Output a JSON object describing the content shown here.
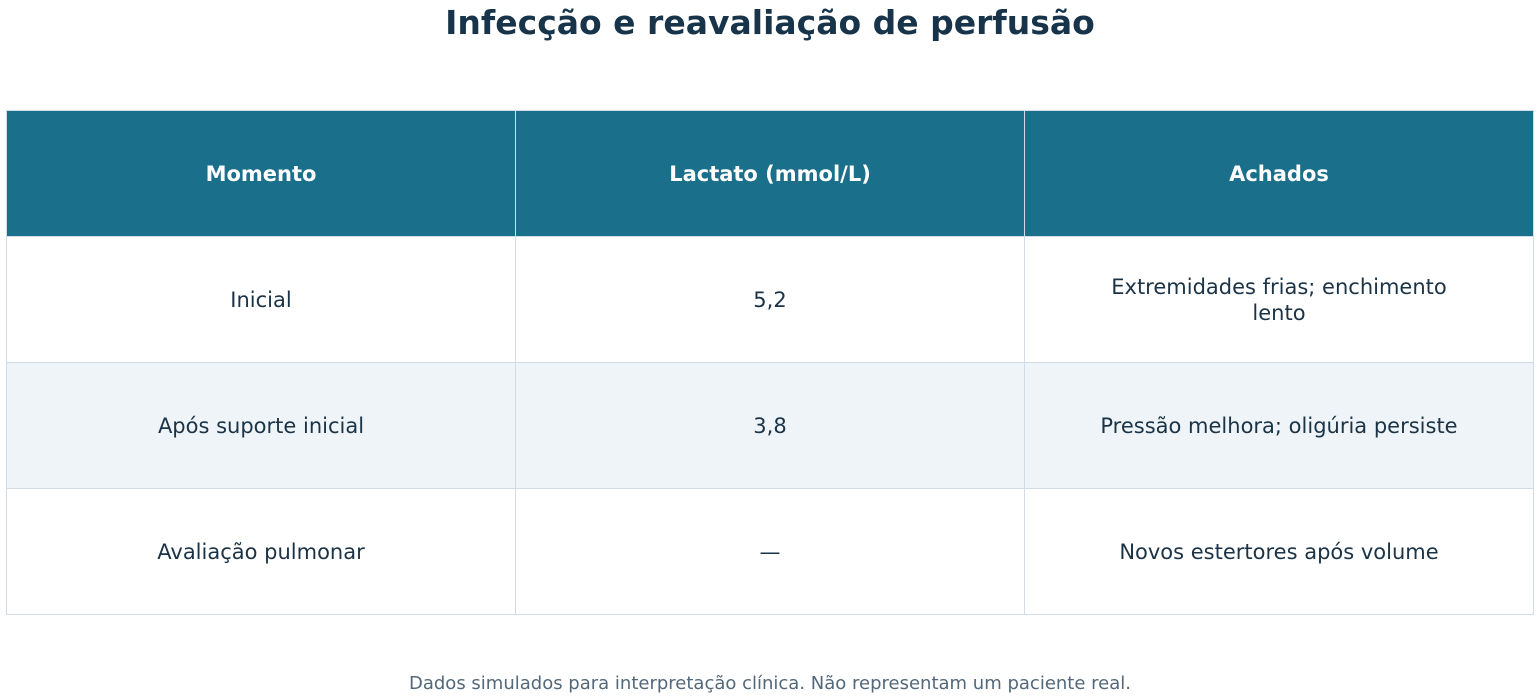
{
  "chart_data": {
    "type": "table",
    "title": "Infecção e reavaliação de perfusão",
    "columns": [
      "Momento",
      "Lactato (mmol/L)",
      "Achados"
    ],
    "rows": [
      [
        "Inicial",
        "5,2",
        "Extremidades frias; enchimento lento"
      ],
      [
        "Após suporte inicial",
        "3,8",
        "Pressão melhora; oligúria persiste"
      ],
      [
        "Avaliação pulmonar",
        "—",
        "Novos estertores após volume"
      ]
    ],
    "footnote": "Dados simulados para interpretação clínica. Não representam um paciente real."
  },
  "colors": {
    "header_bg": "#1a6f8a",
    "header_text": "#ffffff",
    "title_text": "#17344a",
    "body_text": "#1b3346",
    "stripe": "#eef4f8",
    "border": "#d0dde6"
  }
}
